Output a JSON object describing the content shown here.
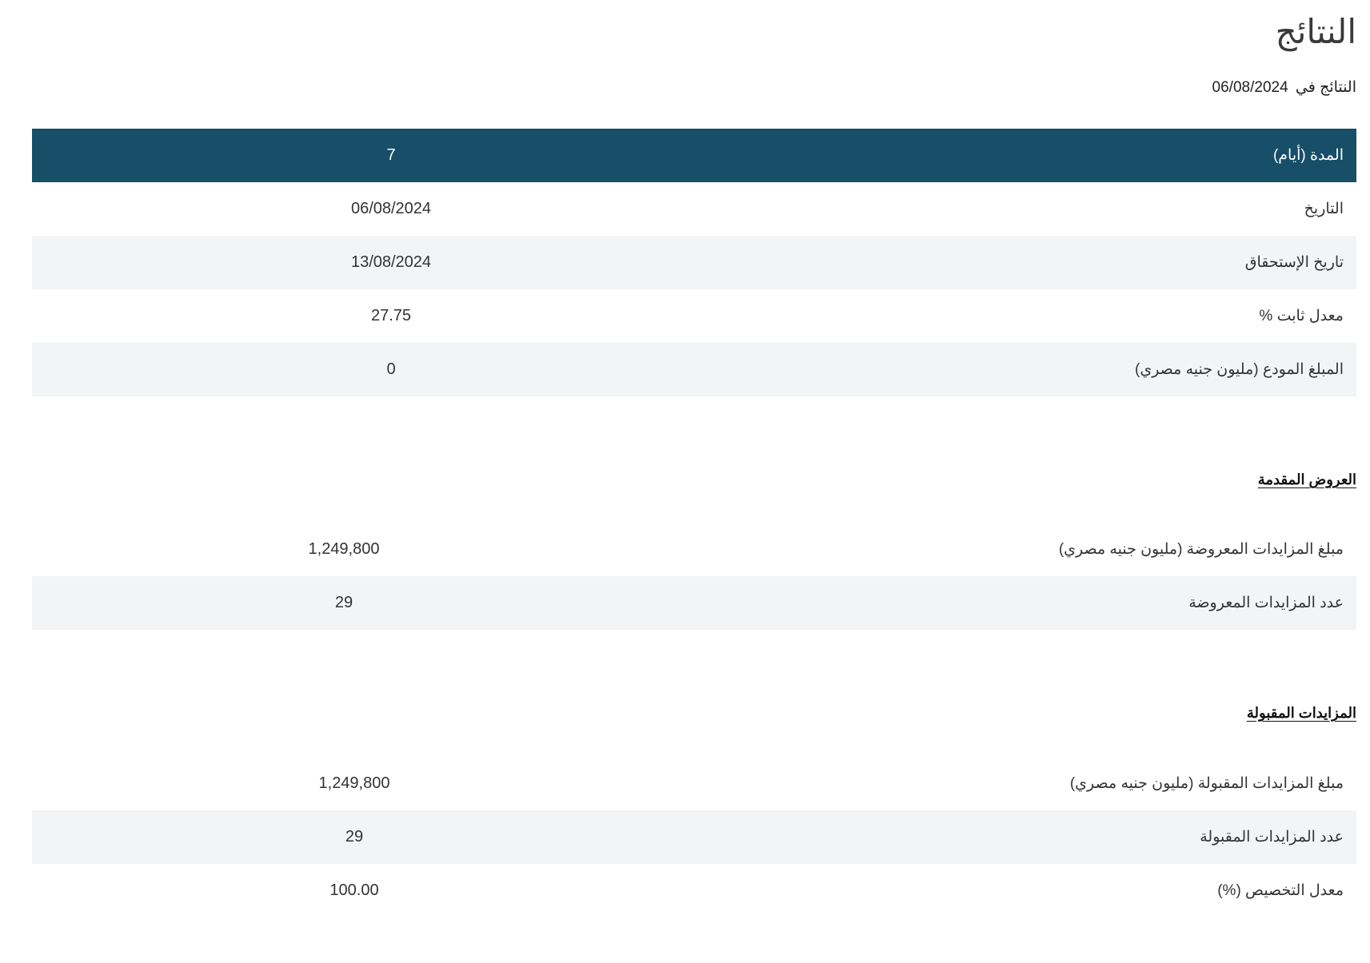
{
  "page": {
    "title": "النتائج",
    "results_date_label": "النتائج في",
    "results_date_value": "06/08/2024"
  },
  "main_table": {
    "header": {
      "label": "المدة (أيام)",
      "value": "7"
    },
    "rows": [
      {
        "label": "التاريخ",
        "value": "06/08/2024"
      },
      {
        "label": "تاريخ الإستحقاق",
        "value": "13/08/2024"
      },
      {
        "label": "معدل ثابت %",
        "value": "27.75"
      },
      {
        "label": "المبلغ المودع (مليون جنيه مصري)",
        "value": "0"
      }
    ]
  },
  "offered_section": {
    "heading": "العروض المقدمة",
    "rows": [
      {
        "label": "مبلغ المزايدات المعروضة (مليون جنيه مصري)",
        "value": "1,249,800"
      },
      {
        "label": "عدد المزايدات المعروضة",
        "value": "29"
      }
    ]
  },
  "accepted_section": {
    "heading": "المزايدات المقبولة",
    "rows": [
      {
        "label": "مبلغ المزايدات المقبولة (مليون جنيه مصري)",
        "value": "1,249,800"
      },
      {
        "label": "عدد المزايدات المقبولة",
        "value": "29"
      },
      {
        "label": "معدل التخصيص (%)",
        "value": "100.00"
      }
    ]
  },
  "colors": {
    "header_bg": "#174e68",
    "row_alt_bg": "#f3f4f6",
    "text": "#333333"
  }
}
